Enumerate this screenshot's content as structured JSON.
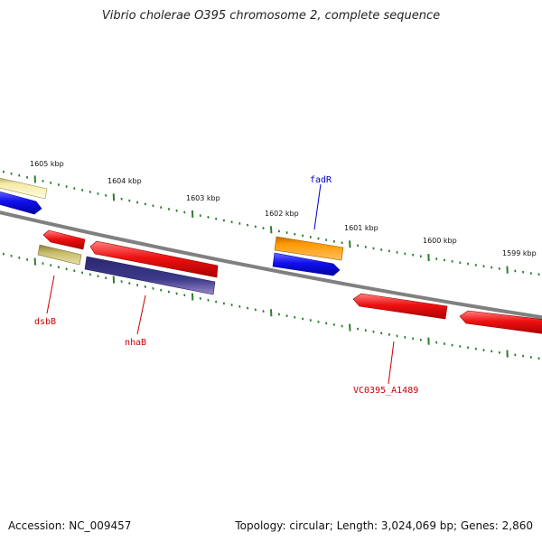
{
  "title": "Vibrio cholerae O395 chromosome 2, complete sequence",
  "footer": {
    "accession": "Accession: NC_009457",
    "topology": "Topology: circular; Length: 3,024,069 bp; Genes: 2,860"
  },
  "ruler_labels": [
    "1605 kbp",
    "1604 kbp",
    "1603 kbp",
    "1602 kbp",
    "1601 kbp",
    "1600 kbp",
    "1599 kbp"
  ],
  "gene_labels": [
    {
      "name": "fadR",
      "color": "#0000cc"
    },
    {
      "name": "dsbB",
      "color": "#cc0000"
    },
    {
      "name": "nhaB",
      "color": "#cc0000"
    },
    {
      "name": "VC0395_A1489",
      "color": "#cc0000"
    }
  ],
  "feature_colors": {
    "backbone": "#808080",
    "ruler_tick": "#2e7d2e",
    "red": "#ee1111",
    "blue": "#1010ee",
    "orange": "#ff9900",
    "pale_yellow": "#f4eba8",
    "olive": "#c8bd6a",
    "dark_purple": "#3d3a8a"
  }
}
